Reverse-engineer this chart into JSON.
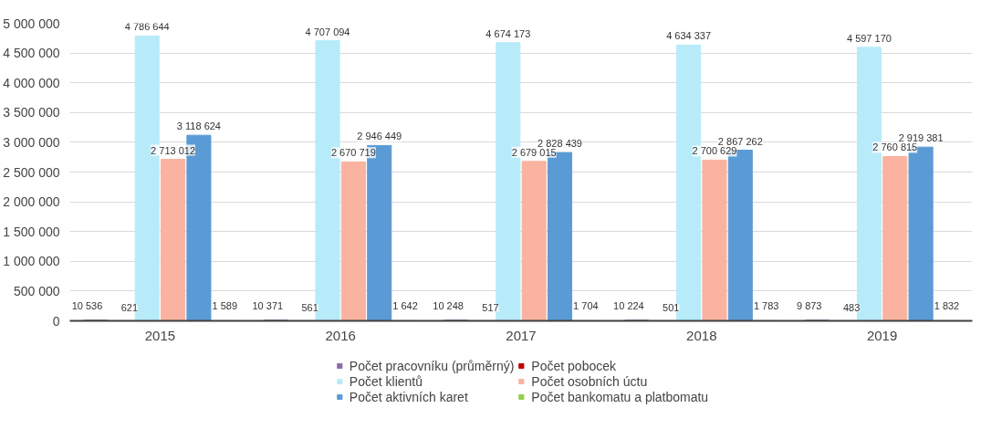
{
  "chart_data": {
    "type": "bar",
    "categories": [
      "2015",
      "2016",
      "2017",
      "2018",
      "2019"
    ],
    "series": [
      {
        "name": "Počet pracovníku (průměrný)",
        "color": "#8e6bab",
        "values": [
          10536,
          10371,
          10248,
          10224,
          9873
        ],
        "value_labels": [
          "10 536",
          "10 371",
          "10 248",
          "10 224",
          "9 873"
        ]
      },
      {
        "name": "Počet pobocek",
        "color": "#c00000",
        "values": [
          621,
          561,
          517,
          501,
          483
        ],
        "value_labels": [
          "621",
          "561",
          "517",
          "501",
          "483"
        ]
      },
      {
        "name": "Počet klientů",
        "color": "#b7ebf9",
        "values": [
          4786644,
          4707094,
          4674173,
          4634337,
          4597170
        ],
        "value_labels": [
          "4 786 644",
          "4 707 094",
          "4 674 173",
          "4 634 337",
          "4 597 170"
        ]
      },
      {
        "name": "Počet osobních úctu",
        "color": "#f9b3a0",
        "values": [
          2713012,
          2670719,
          2679015,
          2700629,
          2760815
        ],
        "value_labels": [
          "2 713 012",
          "2 670 719",
          "2 679 015",
          "2 700 629",
          "2 760 815"
        ]
      },
      {
        "name": "Počet aktivních karet",
        "color": "#5b9bd5",
        "values": [
          3118624,
          2946449,
          2828439,
          2867262,
          2919381
        ],
        "value_labels": [
          "3 118 624",
          "2 946 449",
          "2 828 439",
          "2 867 262",
          "2 919 381"
        ]
      },
      {
        "name": "Počet bankomatu a platbomatu",
        "color": "#92d050",
        "values": [
          1589,
          1642,
          1704,
          1783,
          1832
        ],
        "value_labels": [
          "1 589",
          "1 642",
          "1 704",
          "1 783",
          "1 832"
        ]
      }
    ],
    "ylim": [
      0,
      5000000
    ],
    "yticks": [
      {
        "value": 0,
        "label": "0"
      },
      {
        "value": 500000,
        "label": "500 000"
      },
      {
        "value": 1000000,
        "label": "1 000 000"
      },
      {
        "value": 1500000,
        "label": "1 500 000"
      },
      {
        "value": 2000000,
        "label": "2 000 000"
      },
      {
        "value": 2500000,
        "label": "2 500 000"
      },
      {
        "value": 3000000,
        "label": "3 000 000"
      },
      {
        "value": 3500000,
        "label": "3 500 000"
      },
      {
        "value": 4000000,
        "label": "4 000 000"
      },
      {
        "value": 4500000,
        "label": "4 500 000"
      },
      {
        "value": 5000000,
        "label": "5 000 000"
      }
    ],
    "grid": "y",
    "legend": "bottom"
  }
}
